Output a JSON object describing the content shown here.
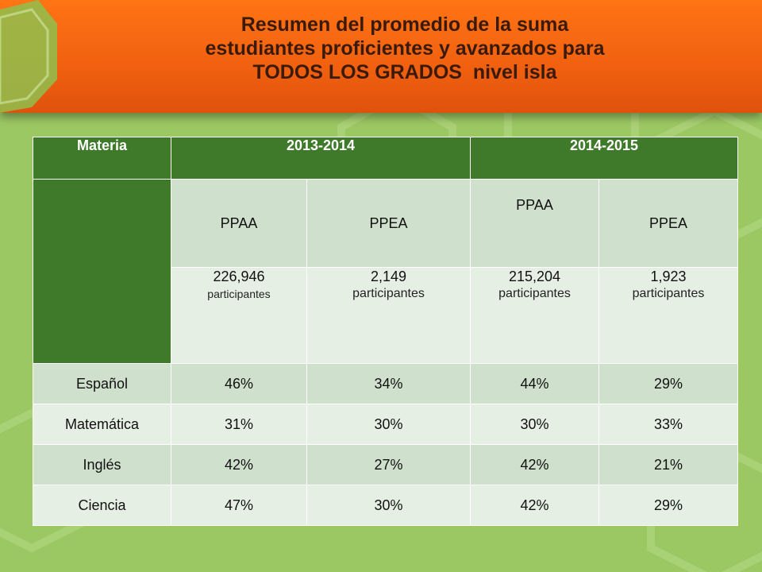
{
  "title": {
    "line1": "Resumen del promedio de la suma",
    "line2": "estudiantes proficientes y avanzados para",
    "line3": "TODOS LOS GRADOS  nivel isla"
  },
  "colors": {
    "banner": "#f06010",
    "header_green": "#3f7a2b",
    "row_dark": "#cfe0cc",
    "row_light": "#e6efe4",
    "background": "#9cc864"
  },
  "table": {
    "materia_label": "Materia",
    "years": [
      "2013-2014",
      "2014-2015"
    ],
    "subheaders": [
      "PPAA",
      "PPEA",
      "PPAA",
      "PPEA"
    ],
    "participants": [
      {
        "count": "226,946",
        "label": "participantes"
      },
      {
        "count": "2,149",
        "label": "participantes"
      },
      {
        "count": "215,204",
        "label": "participantes"
      },
      {
        "count": "1,923",
        "label": "participantes"
      }
    ],
    "rows": [
      {
        "subject": "Español",
        "values": [
          "46%",
          "34%",
          "44%",
          "29%"
        ]
      },
      {
        "subject": "Matemática",
        "values": [
          "31%",
          "30%",
          "30%",
          "33%"
        ]
      },
      {
        "subject": "Inglés",
        "values": [
          "42%",
          "27%",
          "42%",
          "21%"
        ]
      },
      {
        "subject": "Ciencia",
        "values": [
          "47%",
          "30%",
          "42%",
          "29%"
        ]
      }
    ]
  }
}
